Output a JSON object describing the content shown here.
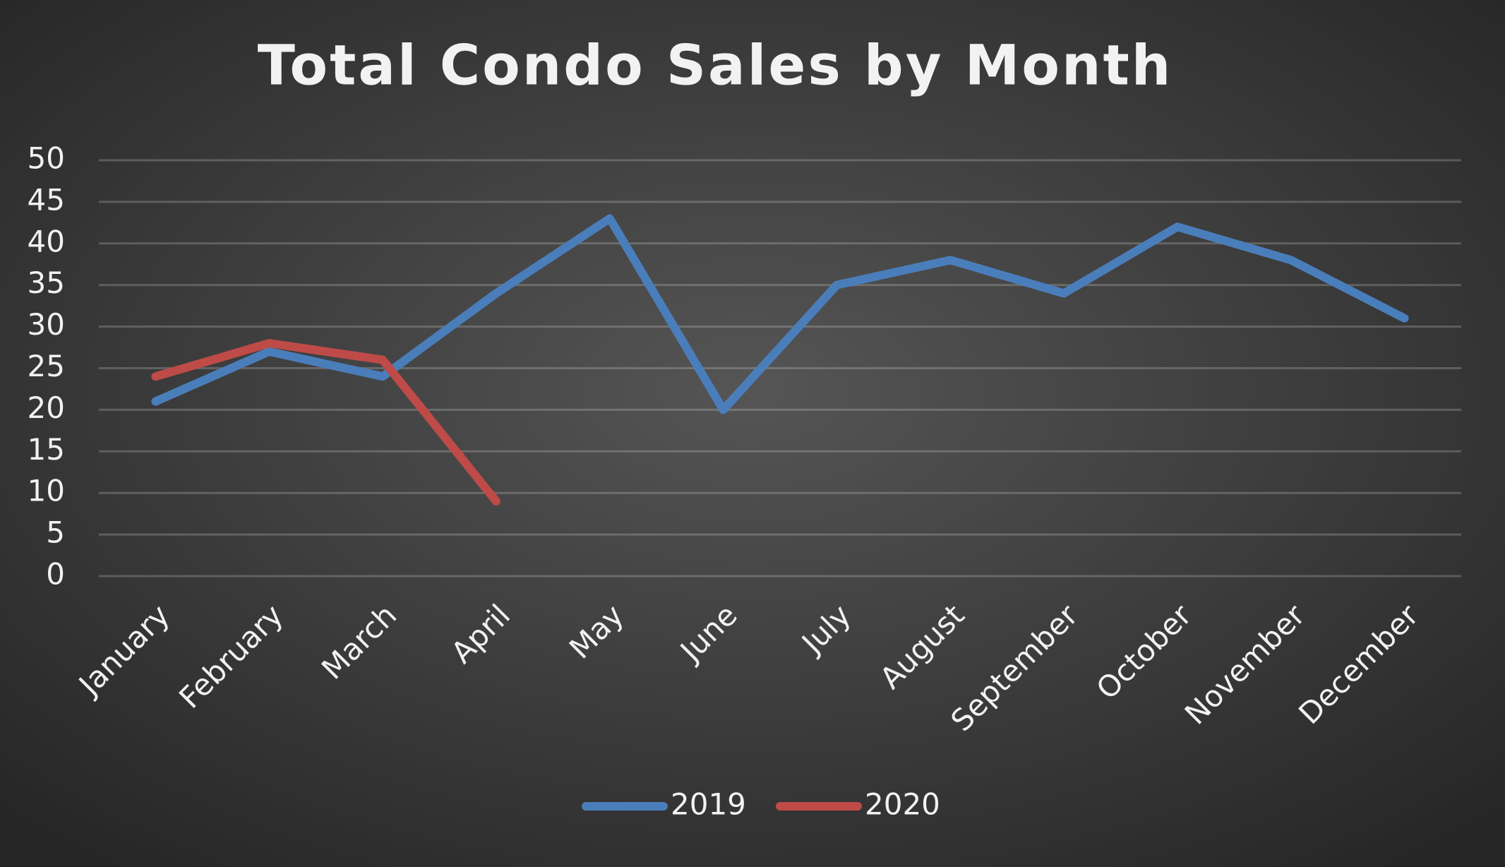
{
  "chart_data": {
    "type": "line",
    "title": "Total Condo Sales by Month",
    "categories": [
      "January",
      "February",
      "March",
      "April",
      "May",
      "June",
      "July",
      "August",
      "September",
      "October",
      "November",
      "December"
    ],
    "series": [
      {
        "name": "2019",
        "color": "#4a7ebb",
        "values": [
          21,
          27,
          24,
          34,
          43,
          20,
          35,
          38,
          34,
          42,
          38,
          31
        ]
      },
      {
        "name": "2020",
        "color": "#be4b48",
        "values": [
          24,
          28,
          26,
          9,
          null,
          null,
          null,
          null,
          null,
          null,
          null,
          null
        ]
      }
    ],
    "ylim": [
      0,
      50
    ],
    "yticks": [
      0,
      5,
      10,
      15,
      20,
      25,
      30,
      35,
      40,
      45,
      50
    ],
    "grid": true,
    "legend": "bottom"
  }
}
